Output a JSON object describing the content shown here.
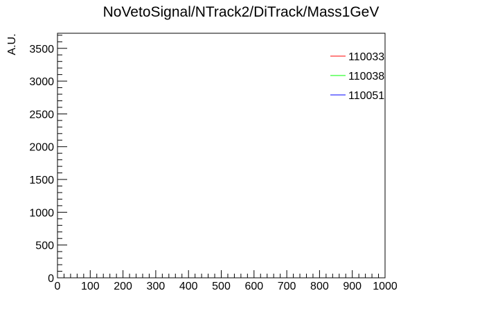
{
  "chart_data": {
    "type": "line",
    "title": "NoVetoSignal/NTrack2/DiTrack/Mass1GeV",
    "xlabel": "",
    "ylabel": "A.U.",
    "xlim": [
      0,
      1000
    ],
    "ylim": [
      0,
      3730
    ],
    "x_ticks": [
      0,
      100,
      200,
      300,
      400,
      500,
      600,
      700,
      800,
      900,
      1000
    ],
    "y_ticks": [
      0,
      500,
      1000,
      1500,
      2000,
      2500,
      3000,
      3500
    ],
    "x_minor_step": 20,
    "y_minor_step": 100,
    "grid": false,
    "legend_position": "top-right",
    "series": [
      {
        "name": "110033",
        "color": "#ff0000",
        "x": [
          0,
          1000
        ],
        "y": [
          0,
          0
        ]
      },
      {
        "name": "110038",
        "color": "#00ff00",
        "x": [
          0,
          1000
        ],
        "y": [
          0,
          0
        ]
      },
      {
        "name": "110051",
        "color": "#0000ff",
        "x": [
          0,
          1000
        ],
        "y": [
          0,
          0
        ]
      }
    ]
  }
}
